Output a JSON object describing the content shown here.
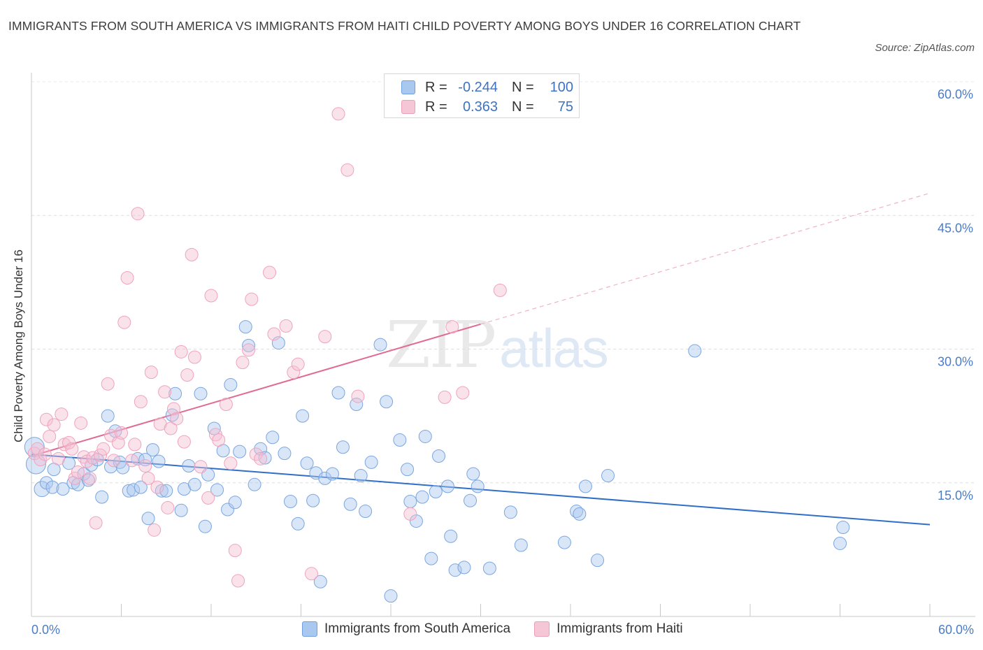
{
  "title": "IMMIGRANTS FROM SOUTH AMERICA VS IMMIGRANTS FROM HAITI CHILD POVERTY AMONG BOYS UNDER 16 CORRELATION CHART",
  "source": "Source: ZipAtlas.com",
  "watermark": {
    "zip": "ZIP",
    "atlas": "atlas"
  },
  "legend": {
    "r_label": "R =",
    "n_label": "N =",
    "rows": [
      {
        "r": "-0.244",
        "n": "100",
        "color": "#a9c8f0"
      },
      {
        "r": "0.363",
        "n": "75",
        "color": "#f5bfd0"
      }
    ]
  },
  "series_labels": {
    "south_america": "Immigrants from South America",
    "haiti": "Immigrants from Haiti"
  },
  "chart_data": {
    "type": "scatter",
    "title": "IMMIGRANTS FROM SOUTH AMERICA VS IMMIGRANTS FROM HAITI CHILD POVERTY AMONG BOYS UNDER 16 CORRELATION CHART",
    "xlabel": "",
    "ylabel": "Child Poverty Among Boys Under 16",
    "xlim": [
      0,
      60
    ],
    "ylim": [
      0,
      60
    ],
    "x_tick_labels": [
      "0.0%",
      "60.0%"
    ],
    "y_ticks": [
      15,
      30,
      45,
      60
    ],
    "y_tick_labels": [
      "15.0%",
      "30.0%",
      "45.0%",
      "60.0%"
    ],
    "colors": {
      "south_america": "#7aa6e0",
      "south_america_line": "#2f6fc9",
      "haiti": "#f0a3bd",
      "haiti_line": "#e06b92"
    },
    "series": [
      {
        "name": "Immigrants from South America",
        "r": -0.244,
        "n": 100,
        "trend": {
          "x0": 0,
          "y0": 18.2,
          "x1": 60,
          "y1": 10.3
        },
        "points": [
          [
            0.2,
            19.0,
            3
          ],
          [
            0.3,
            17.1,
            3
          ],
          [
            0.7,
            14.3,
            2
          ],
          [
            1.0,
            15.0,
            1
          ],
          [
            1.4,
            14.5,
            1
          ],
          [
            1.5,
            16.5,
            1
          ],
          [
            2.1,
            14.3,
            1
          ],
          [
            2.5,
            17.2,
            1
          ],
          [
            2.8,
            15.0,
            1
          ],
          [
            3.1,
            14.8,
            1
          ],
          [
            3.5,
            16.0,
            1
          ],
          [
            3.8,
            15.3,
            1
          ],
          [
            4.0,
            17.0,
            1
          ],
          [
            4.4,
            17.6,
            1
          ],
          [
            4.7,
            13.4,
            1
          ],
          [
            5.1,
            22.5,
            1
          ],
          [
            5.3,
            16.8,
            1
          ],
          [
            5.6,
            20.8,
            1
          ],
          [
            5.9,
            17.3,
            1
          ],
          [
            6.1,
            16.7,
            1
          ],
          [
            6.5,
            14.1,
            1
          ],
          [
            6.8,
            14.2,
            1
          ],
          [
            7.1,
            17.7,
            1
          ],
          [
            7.3,
            14.5,
            1
          ],
          [
            7.6,
            17.6,
            1
          ],
          [
            7.8,
            11.0,
            1
          ],
          [
            8.1,
            18.7,
            1
          ],
          [
            8.5,
            17.4,
            1
          ],
          [
            8.7,
            14.1,
            1
          ],
          [
            9.0,
            14.1,
            1
          ],
          [
            9.4,
            22.6,
            1
          ],
          [
            9.6,
            25.0,
            1
          ],
          [
            10.0,
            11.9,
            1
          ],
          [
            10.2,
            14.3,
            1
          ],
          [
            10.5,
            16.9,
            1
          ],
          [
            10.9,
            14.8,
            1
          ],
          [
            11.3,
            25.0,
            1
          ],
          [
            11.6,
            10.1,
            1
          ],
          [
            11.8,
            15.9,
            1
          ],
          [
            12.2,
            21.1,
            1
          ],
          [
            12.4,
            14.2,
            1
          ],
          [
            12.8,
            18.6,
            1
          ],
          [
            13.1,
            12.0,
            1
          ],
          [
            13.3,
            26.0,
            1
          ],
          [
            13.6,
            12.8,
            1
          ],
          [
            13.9,
            18.5,
            1
          ],
          [
            14.3,
            32.5,
            1
          ],
          [
            14.5,
            30.4,
            1
          ],
          [
            14.9,
            14.8,
            1
          ],
          [
            15.3,
            18.8,
            1
          ],
          [
            15.6,
            17.8,
            1
          ],
          [
            16.1,
            20.1,
            1
          ],
          [
            16.5,
            30.7,
            1
          ],
          [
            16.9,
            18.3,
            1
          ],
          [
            17.3,
            12.9,
            1
          ],
          [
            17.8,
            10.4,
            1
          ],
          [
            18.1,
            22.5,
            1
          ],
          [
            18.4,
            17.2,
            1
          ],
          [
            18.8,
            13.0,
            1
          ],
          [
            19.0,
            16.1,
            1
          ],
          [
            19.3,
            3.9,
            1
          ],
          [
            19.6,
            15.5,
            1
          ],
          [
            20.1,
            16.0,
            1
          ],
          [
            20.5,
            25.1,
            1
          ],
          [
            20.8,
            19.0,
            1
          ],
          [
            21.3,
            12.6,
            1
          ],
          [
            21.7,
            23.8,
            1
          ],
          [
            22.0,
            15.8,
            1
          ],
          [
            22.3,
            11.8,
            1
          ],
          [
            22.7,
            17.3,
            1
          ],
          [
            23.3,
            30.5,
            1
          ],
          [
            23.7,
            24.1,
            1
          ],
          [
            24.0,
            2.3,
            1
          ],
          [
            24.6,
            19.8,
            1
          ],
          [
            25.1,
            16.5,
            1
          ],
          [
            25.3,
            12.9,
            1
          ],
          [
            25.7,
            10.7,
            1
          ],
          [
            26.1,
            13.4,
            1
          ],
          [
            26.3,
            20.2,
            1
          ],
          [
            26.7,
            6.5,
            1
          ],
          [
            27.0,
            14.0,
            1
          ],
          [
            27.2,
            18.0,
            1
          ],
          [
            27.8,
            14.6,
            1
          ],
          [
            28.0,
            9.0,
            1
          ],
          [
            28.3,
            5.2,
            1
          ],
          [
            28.9,
            5.5,
            1
          ],
          [
            29.3,
            13.0,
            1
          ],
          [
            29.5,
            16.0,
            1
          ],
          [
            29.8,
            14.6,
            1
          ],
          [
            30.6,
            5.4,
            1
          ],
          [
            32.0,
            11.7,
            1
          ],
          [
            32.7,
            8.0,
            1
          ],
          [
            35.6,
            8.3,
            1
          ],
          [
            36.4,
            11.8,
            1
          ],
          [
            36.6,
            11.5,
            1
          ],
          [
            37.8,
            6.3,
            1
          ],
          [
            37.0,
            14.6,
            1
          ],
          [
            38.5,
            15.8,
            1
          ],
          [
            44.3,
            29.8,
            1
          ],
          [
            54.0,
            8.2,
            1
          ],
          [
            54.2,
            10.0,
            1
          ]
        ]
      },
      {
        "name": "Immigrants from Haiti",
        "r": 0.363,
        "n": 75,
        "trend_solid": {
          "x0": 0,
          "y0": 18.0,
          "x1": 30,
          "y1": 32.8
        },
        "trend_dashed": {
          "x0": 30,
          "y0": 32.8,
          "x1": 60,
          "y1": 47.5
        },
        "points": [
          [
            0.2,
            18.3,
            1
          ],
          [
            0.4,
            18.8,
            1
          ],
          [
            0.6,
            17.6,
            1
          ],
          [
            0.9,
            18.2,
            1
          ],
          [
            1.0,
            22.1,
            1
          ],
          [
            1.2,
            20.2,
            1
          ],
          [
            1.5,
            21.5,
            1
          ],
          [
            1.8,
            17.7,
            1
          ],
          [
            2.0,
            22.7,
            1
          ],
          [
            2.2,
            19.3,
            1
          ],
          [
            2.5,
            19.5,
            1
          ],
          [
            2.7,
            18.8,
            1
          ],
          [
            2.9,
            15.5,
            1
          ],
          [
            3.1,
            16.2,
            1
          ],
          [
            3.3,
            21.7,
            1
          ],
          [
            3.5,
            17.9,
            1
          ],
          [
            3.7,
            17.4,
            1
          ],
          [
            3.9,
            15.5,
            1
          ],
          [
            4.1,
            17.8,
            1
          ],
          [
            4.3,
            10.5,
            1
          ],
          [
            4.6,
            18.1,
            1
          ],
          [
            4.8,
            18.8,
            1
          ],
          [
            5.1,
            26.1,
            1
          ],
          [
            5.3,
            20.3,
            1
          ],
          [
            5.5,
            17.5,
            1
          ],
          [
            5.8,
            19.5,
            1
          ],
          [
            6.0,
            20.6,
            1
          ],
          [
            6.2,
            33.0,
            1
          ],
          [
            6.4,
            38.0,
            1
          ],
          [
            6.7,
            17.5,
            1
          ],
          [
            6.9,
            19.3,
            1
          ],
          [
            7.1,
            45.2,
            1
          ],
          [
            7.3,
            24.1,
            1
          ],
          [
            7.6,
            16.9,
            1
          ],
          [
            7.8,
            15.5,
            1
          ],
          [
            8.0,
            27.4,
            1
          ],
          [
            8.2,
            9.7,
            1
          ],
          [
            8.4,
            14.5,
            1
          ],
          [
            8.6,
            21.6,
            1
          ],
          [
            8.9,
            25.2,
            1
          ],
          [
            9.1,
            12.2,
            1
          ],
          [
            9.3,
            21.1,
            1
          ],
          [
            9.5,
            23.3,
            1
          ],
          [
            9.7,
            22.2,
            1
          ],
          [
            10.0,
            29.7,
            1
          ],
          [
            10.2,
            19.6,
            1
          ],
          [
            10.4,
            27.1,
            1
          ],
          [
            10.7,
            40.6,
            1
          ],
          [
            10.9,
            29.1,
            1
          ],
          [
            11.3,
            16.8,
            1
          ],
          [
            11.8,
            13.3,
            1
          ],
          [
            12.0,
            36.0,
            1
          ],
          [
            12.3,
            20.4,
            1
          ],
          [
            12.5,
            19.8,
            1
          ],
          [
            13.0,
            23.8,
            1
          ],
          [
            13.3,
            17.2,
            1
          ],
          [
            13.6,
            7.4,
            1
          ],
          [
            13.8,
            4.0,
            1
          ],
          [
            14.1,
            28.5,
            1
          ],
          [
            14.5,
            29.9,
            1
          ],
          [
            14.7,
            35.6,
            1
          ],
          [
            15.0,
            18.2,
            1
          ],
          [
            15.3,
            17.7,
            1
          ],
          [
            15.9,
            38.6,
            1
          ],
          [
            16.2,
            31.7,
            1
          ],
          [
            17.0,
            32.6,
            1
          ],
          [
            17.5,
            27.4,
            1
          ],
          [
            17.8,
            28.3,
            1
          ],
          [
            18.7,
            4.8,
            1
          ],
          [
            19.6,
            31.4,
            1
          ],
          [
            20.5,
            56.4,
            1
          ],
          [
            21.1,
            50.1,
            1
          ],
          [
            21.8,
            24.7,
            1
          ],
          [
            25.3,
            11.5,
            1
          ],
          [
            27.6,
            24.6,
            1
          ],
          [
            28.1,
            32.5,
            1
          ],
          [
            28.8,
            25.1,
            1
          ],
          [
            31.3,
            36.6,
            1
          ]
        ]
      }
    ]
  }
}
